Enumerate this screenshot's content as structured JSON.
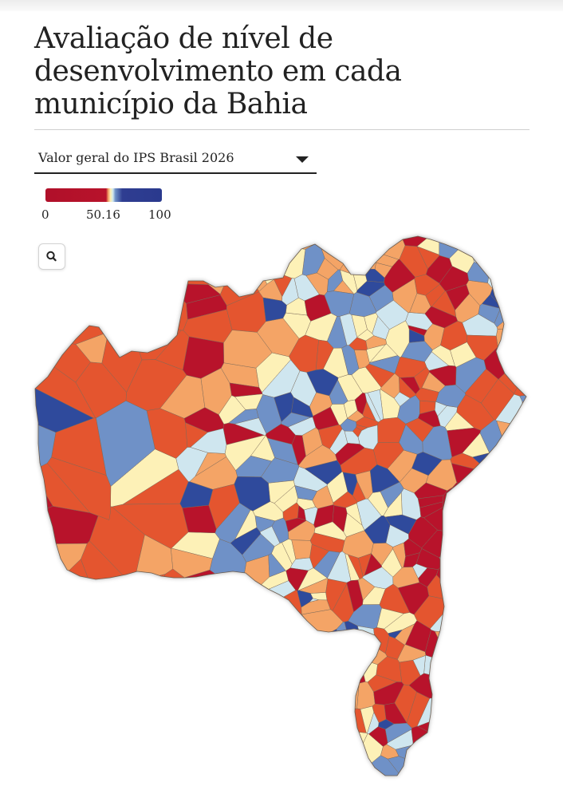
{
  "title": "Avaliação de nível de desenvolvimento em cada município da Bahia",
  "selector": {
    "label": "Valor geral do IPS Brasil 2026",
    "icon": "chevron-down-icon"
  },
  "legend": {
    "min_label": "0",
    "mid_label": "50.16",
    "max_label": "100",
    "colors": [
      "#b0102a",
      "#e4542f",
      "#f4a466",
      "#fdf1b7",
      "#cfe6ef",
      "#6f91c7",
      "#2f3d91"
    ]
  },
  "zoom_button": {
    "icon": "search-icon"
  },
  "map": {
    "region": "Bahia",
    "palette": {
      "very_low": "#b8132b",
      "low": "#e4552f",
      "mid_low": "#f4a466",
      "mid": "#fdf1b7",
      "mid_high": "#cfe6ef",
      "high": "#6f91c7",
      "very_high": "#2f4a9c"
    },
    "border_color": "#7a6a5a",
    "cell_seed": 20260
  }
}
